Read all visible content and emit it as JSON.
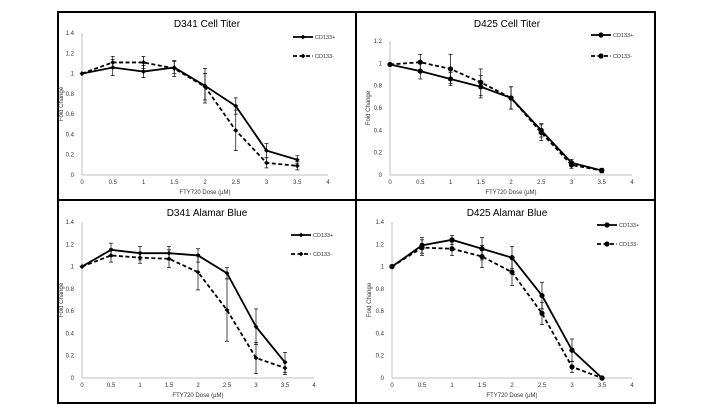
{
  "colors": {
    "series": "#000000",
    "axis": "#bfbfbf",
    "border": "#000000"
  },
  "chart_data": [
    {
      "type": "line",
      "title": "D341 Cell Titer",
      "xlabel": "FTY720 Dose (µM)",
      "ylabel": "Fold Change",
      "xlim": [
        0,
        4
      ],
      "ylim": [
        0,
        1.4
      ],
      "xticks": [
        "0",
        "0.5",
        "1",
        "1.5",
        "2",
        "2.5",
        "3",
        "3.5",
        "4"
      ],
      "yticks": [
        "0",
        "0.2",
        "0.4",
        "0.6",
        "0.8",
        "1",
        "1.2",
        "1.4"
      ],
      "x": [
        0,
        0.5,
        1,
        1.5,
        2,
        2.5,
        3,
        3.5
      ],
      "legend_position": "top-right",
      "grid": false,
      "series": [
        {
          "name": "CD133+",
          "style": "solid",
          "marker": "diamond",
          "values": [
            1.0,
            1.06,
            1.02,
            1.06,
            0.88,
            0.68,
            0.24,
            0.15
          ],
          "errors": [
            0,
            0.08,
            0.06,
            0.06,
            0.17,
            0.08,
            0.07,
            0.04
          ]
        },
        {
          "name": "CD133-",
          "style": "dashed",
          "marker": "diamond",
          "values": [
            1.0,
            1.11,
            1.11,
            1.05,
            0.87,
            0.44,
            0.12,
            0.09
          ],
          "errors": [
            0,
            0.06,
            0.06,
            0.08,
            0.13,
            0.2,
            0.05,
            0.04
          ]
        }
      ]
    },
    {
      "type": "line",
      "title": "D425 Cell Titer",
      "xlabel": "FTY720 Dose (µM)",
      "ylabel": "Fold Change",
      "xlim": [
        0,
        4
      ],
      "ylim": [
        0,
        1.2
      ],
      "xticks": [
        "0",
        "0.5",
        "1",
        "1.5",
        "2",
        "2.5",
        "3",
        "3.5",
        "4"
      ],
      "yticks": [
        "0",
        "0.2",
        "0.4",
        "0.6",
        "0.8",
        "1",
        "1.2"
      ],
      "x": [
        0,
        0.5,
        1,
        1.5,
        2,
        2.5,
        3,
        3.5
      ],
      "legend_position": "top-right",
      "grid": false,
      "series": [
        {
          "name": "CD133+",
          "style": "solid",
          "marker": "circle",
          "values": [
            0.99,
            0.93,
            0.86,
            0.79,
            0.69,
            0.4,
            0.11,
            0.04
          ],
          "errors": [
            0,
            0.07,
            0.06,
            0.1,
            0.1,
            0.06,
            0.03,
            0.02
          ]
        },
        {
          "name": "CD133-",
          "style": "dashed",
          "marker": "circle",
          "values": [
            0.99,
            1.01,
            0.95,
            0.83,
            0.69,
            0.38,
            0.09,
            0.04
          ],
          "errors": [
            0,
            0.07,
            0.13,
            0.12,
            0.1,
            0.07,
            0.03,
            0.02
          ]
        }
      ]
    },
    {
      "type": "line",
      "title": "D341 Alamar Blue",
      "xlabel": "FTY720 Dose (µM)",
      "ylabel": "Fold Change",
      "xlim": [
        0,
        4
      ],
      "ylim": [
        0,
        1.4
      ],
      "xticks": [
        "0",
        "0.5",
        "1",
        "1.5",
        "2",
        "2.5",
        "3",
        "3.5",
        "4"
      ],
      "yticks": [
        "0",
        "0.2",
        "0.4",
        "0.6",
        "0.8",
        "1",
        "1.2",
        "1.4"
      ],
      "x": [
        0,
        0.5,
        1,
        1.5,
        2,
        2.5,
        3,
        3.5
      ],
      "legend_position": "top-right",
      "grid": false,
      "series": [
        {
          "name": "CD133+",
          "style": "solid",
          "marker": "diamond",
          "values": [
            1.0,
            1.15,
            1.12,
            1.12,
            1.1,
            0.94,
            0.46,
            0.14
          ],
          "errors": [
            0,
            0.06,
            0.06,
            0.06,
            0.06,
            0.05,
            0.16,
            0.09
          ]
        },
        {
          "name": "CD133-",
          "style": "dashed",
          "marker": "diamond",
          "values": [
            1.0,
            1.1,
            1.08,
            1.07,
            0.95,
            0.61,
            0.18,
            0.09
          ],
          "errors": [
            0,
            0.06,
            0.05,
            0.08,
            0.16,
            0.28,
            0.14,
            0.06
          ]
        }
      ]
    },
    {
      "type": "line",
      "title": "D425 Alamar Blue",
      "xlabel": "FTY720 Dose (µM)",
      "ylabel": "Fold Change",
      "xlim": [
        0,
        4
      ],
      "ylim": [
        0,
        1.4
      ],
      "xticks": [
        "0",
        "0.5",
        "1",
        "1.5",
        "2",
        "2.5",
        "3",
        "3.5",
        "4"
      ],
      "yticks": [
        "0",
        "0.2",
        "0.4",
        "0.6",
        "0.8",
        "1",
        "1.2",
        "1.4"
      ],
      "x": [
        0,
        0.5,
        1,
        1.5,
        2,
        2.5,
        3,
        3.5
      ],
      "legend_position": "top-right",
      "grid": false,
      "series": [
        {
          "name": "CD133+",
          "style": "solid",
          "marker": "circle",
          "values": [
            1.0,
            1.19,
            1.24,
            1.16,
            1.08,
            0.74,
            0.25,
            0.0
          ],
          "errors": [
            0,
            0.07,
            0.04,
            0.1,
            0.1,
            0.12,
            0.1,
            0
          ]
        },
        {
          "name": "CD133-",
          "style": "dashed",
          "marker": "circle",
          "values": [
            1.0,
            1.17,
            1.16,
            1.09,
            0.95,
            0.58,
            0.1,
            0.0
          ],
          "errors": [
            0,
            0.07,
            0.06,
            0.1,
            0.12,
            0.1,
            0.05,
            0
          ]
        }
      ]
    }
  ]
}
